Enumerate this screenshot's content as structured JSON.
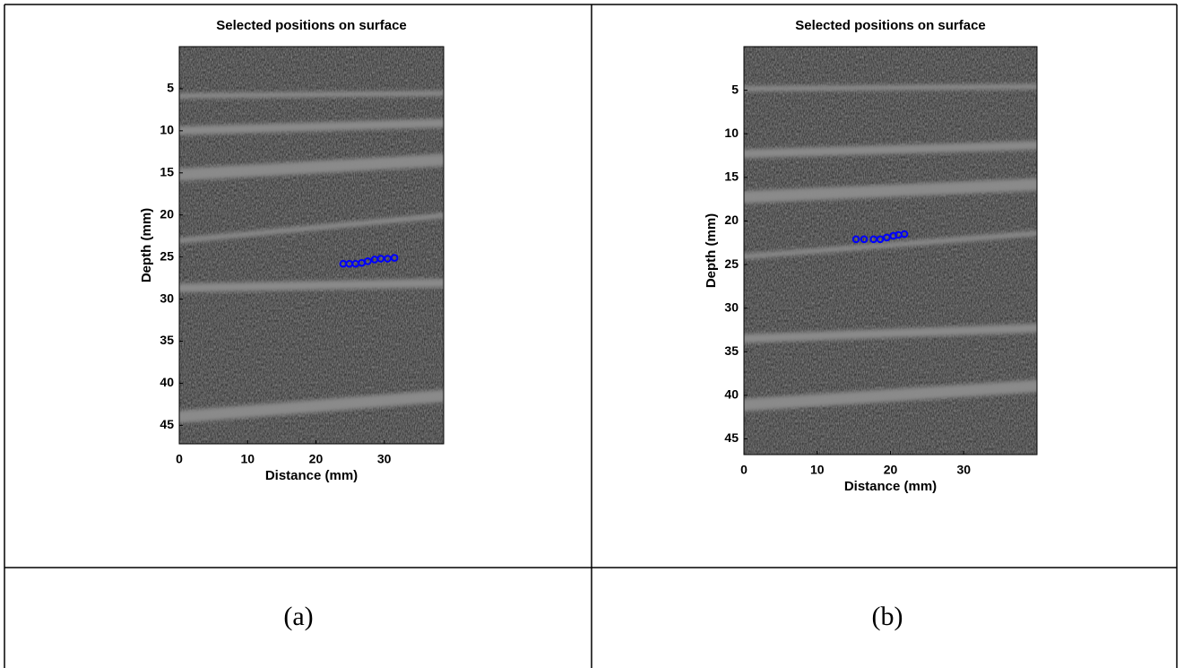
{
  "chart_data": [
    {
      "type": "scatter",
      "title": "Selected positions on surface",
      "xlabel": "Distance (mm)",
      "ylabel": "Depth (mm)",
      "xlim": [
        0,
        38.7
      ],
      "xticks": [
        0,
        10,
        20,
        30
      ],
      "ylim": [
        0,
        47.2
      ],
      "yticks": [
        5,
        10,
        15,
        20,
        25,
        30,
        35,
        40,
        45
      ],
      "y_reversed": true,
      "series": [
        {
          "color": "#0000ff",
          "x": [
            24.0,
            24.9,
            25.8,
            26.7,
            27.6,
            28.6,
            29.5,
            30.5,
            31.5
          ],
          "values": [
            25.8,
            25.8,
            25.8,
            25.7,
            25.5,
            25.3,
            25.2,
            25.2,
            25.1
          ]
        }
      ]
    },
    {
      "type": "scatter",
      "title": "Selected positions on surface",
      "xlabel": "Distance (mm)",
      "ylabel": "Depth (mm)",
      "xlim": [
        0,
        40
      ],
      "xticks": [
        0,
        10,
        20,
        30
      ],
      "ylim": [
        0,
        46.8
      ],
      "yticks": [
        5,
        10,
        15,
        20,
        25,
        30,
        35,
        40,
        45
      ],
      "y_reversed": true,
      "series": [
        {
          "color": "#0000ff",
          "x": [
            15.3,
            16.4,
            17.7,
            18.6,
            19.5,
            20.4,
            21.1,
            21.9
          ],
          "values": [
            22.1,
            22.1,
            22.1,
            22.1,
            21.9,
            21.7,
            21.6,
            21.5
          ]
        }
      ]
    }
  ],
  "captions": [
    "(a)",
    "(b)"
  ]
}
